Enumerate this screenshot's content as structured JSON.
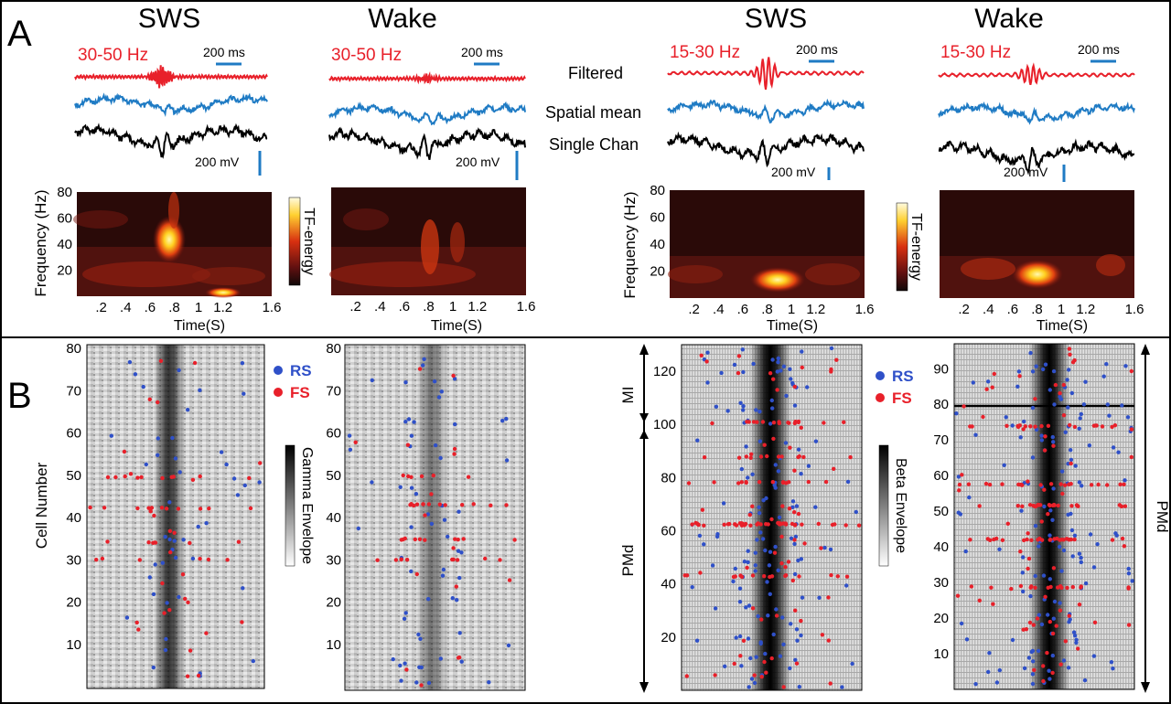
{
  "figure": {
    "panel_a": {
      "letter": "A",
      "col1": {
        "state": "SWS",
        "band": "30-50 Hz",
        "scale_time": "200 ms",
        "scale_volt": "200 mV"
      },
      "col2": {
        "state": "Wake",
        "band": "30-50 Hz",
        "scale_time": "200 ms",
        "scale_volt": "200 mV"
      },
      "col3": {
        "state": "SWS",
        "band": "15-30 Hz",
        "scale_time": "200 ms",
        "scale_volt": "200 mV"
      },
      "col4": {
        "state": "Wake",
        "band": "15-30 Hz",
        "scale_time": "200 ms",
        "scale_volt": "200 mV"
      },
      "trace_labels": {
        "filtered": "Filtered",
        "spatial_mean": "Spatial mean",
        "single_chan": "Single Chan"
      },
      "tf": {
        "ylabel": "Frequency (Hz)",
        "xlabel": "Time(S)",
        "yticks": [
          "20",
          "40",
          "60",
          "80"
        ],
        "xticks": [
          ".2",
          ".4",
          ".6",
          ".8",
          "1",
          "1.2",
          "1.6"
        ],
        "colorbar_label": "TF-energy"
      }
    },
    "panel_b": {
      "letter": "B",
      "ylabel": "Cell Number",
      "legend": {
        "rs": "RS",
        "fs": "FS"
      },
      "gamma_envelope": "Gamma Envelope",
      "beta_envelope": "Beta Envelope",
      "gamma_yticks": [
        "10",
        "20",
        "30",
        "40",
        "50",
        "60",
        "70",
        "80"
      ],
      "beta_yticks_left": [
        "20",
        "40",
        "60",
        "80",
        "100",
        "120"
      ],
      "beta_yticks_right": [
        "10",
        "20",
        "30",
        "40",
        "50",
        "60",
        "70",
        "80",
        "90"
      ],
      "region_mi": "MI",
      "region_pmd": "PMd"
    },
    "colors": {
      "filtered": "#e8202a",
      "mean": "#1f7bc4",
      "single": "#000000",
      "rs": "#2f50c8",
      "fs": "#e8202a"
    }
  }
}
